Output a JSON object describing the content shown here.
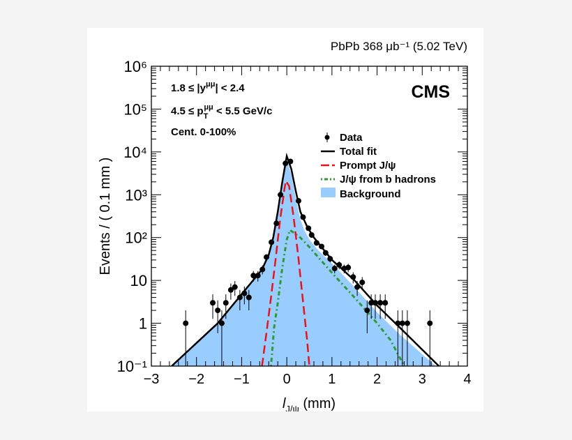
{
  "chart_data": {
    "type": "scatter",
    "header": "PbPb 368 μb⁻¹ (5.02 TeV)",
    "experiment": "CMS",
    "annotations": [
      "1.8 ≤ |y^μμ| < 2.4",
      "4.5 ≤ p_T^μμ < 5.5 GeV/c",
      "Cent. 0-100%"
    ],
    "xlabel": "l_J/ψ (mm)",
    "ylabel": "Events / ( 0.1 mm )",
    "xlim": [
      -3,
      4
    ],
    "ylim": [
      0.1,
      1000000
    ],
    "yscale": "log",
    "xticks": [
      "−3",
      "−2",
      "−1",
      "0",
      "1",
      "2",
      "3",
      "4"
    ],
    "yticks": [
      "10⁻¹",
      "1",
      "10",
      "10²",
      "10³",
      "10⁴",
      "10⁵",
      "10⁶"
    ],
    "legend_placement": "top-right",
    "legend": [
      "Data",
      "Total fit",
      "Prompt J/ψ",
      "J/ψ from b hadrons",
      "Background"
    ],
    "colors": {
      "data": "#000000",
      "total": "#000000",
      "prompt": "#e8141c",
      "nonprompt": "#2e9a37",
      "background": "#99ccff"
    },
    "data": {
      "x": [
        -2.24,
        -1.64,
        -1.53,
        -1.44,
        -1.35,
        -1.24,
        -1.15,
        -1.04,
        -0.94,
        -0.84,
        -0.74,
        -0.64,
        -0.54,
        -0.45,
        -0.34,
        -0.23,
        -0.14,
        -0.03,
        0.08,
        0.26,
        0.36,
        0.48,
        0.55,
        0.66,
        0.77,
        0.86,
        0.96,
        1.06,
        1.16,
        1.27,
        1.36,
        1.47,
        1.56,
        1.67,
        1.78,
        1.87,
        1.96,
        2.07,
        2.18,
        2.46,
        2.56,
        2.67,
        3.17
      ],
      "y": [
        1,
        3,
        2,
        1,
        3,
        6,
        7,
        4,
        5,
        4,
        13,
        13,
        18,
        35,
        78,
        215,
        1000,
        5400,
        6000,
        720,
        300,
        165,
        115,
        75,
        62,
        44,
        32,
        19,
        23,
        19,
        20,
        12,
        7,
        9,
        2,
        3,
        3,
        3,
        3,
        1,
        1,
        1,
        1
      ]
    },
    "total_fit": [
      [
        -2.55,
        0.1
      ],
      [
        -1.53,
        1
      ],
      [
        -0.55,
        18
      ],
      [
        -0.4,
        40
      ],
      [
        -0.3,
        100
      ],
      [
        -0.2,
        400
      ],
      [
        -0.1,
        2000
      ],
      [
        0,
        8000
      ],
      [
        0.1,
        4000
      ],
      [
        0.2,
        1200
      ],
      [
        0.3,
        400
      ],
      [
        0.45,
        180
      ],
      [
        0.6,
        100
      ],
      [
        1.0,
        30
      ],
      [
        1.5,
        10
      ],
      [
        2.0,
        2.6
      ],
      [
        2.5,
        0.8
      ],
      [
        3.37,
        0.1
      ]
    ],
    "background": [
      [
        -2.55,
        0.1
      ],
      [
        -1.53,
        1
      ],
      [
        -0.55,
        18
      ],
      [
        -0.4,
        40
      ],
      [
        -0.3,
        100
      ],
      [
        -0.2,
        380
      ],
      [
        -0.1,
        1800
      ],
      [
        0,
        6500
      ],
      [
        0.1,
        3000
      ],
      [
        0.2,
        800
      ],
      [
        0.3,
        260
      ],
      [
        0.4,
        140
      ],
      [
        0.5,
        90
      ],
      [
        0.7,
        50
      ],
      [
        1.0,
        25
      ],
      [
        1.5,
        7
      ],
      [
        2.0,
        1.8
      ],
      [
        2.5,
        0.55
      ],
      [
        3.3,
        0.1
      ]
    ],
    "prompt": [
      [
        -0.55,
        0.1
      ],
      [
        -0.45,
        0.6
      ],
      [
        -0.35,
        4
      ],
      [
        -0.25,
        30
      ],
      [
        -0.15,
        250
      ],
      [
        -0.05,
        1400
      ],
      [
        -0.02,
        2100
      ],
      [
        0.05,
        1600
      ],
      [
        0.15,
        300
      ],
      [
        0.25,
        40
      ],
      [
        0.35,
        4
      ],
      [
        0.45,
        0.4
      ],
      [
        0.5,
        0.1
      ]
    ],
    "nonprompt": [
      [
        -0.35,
        0.1
      ],
      [
        -0.28,
        0.8
      ],
      [
        -0.2,
        3
      ],
      [
        -0.1,
        20
      ],
      [
        0,
        90
      ],
      [
        0.07,
        150
      ],
      [
        0.3,
        100
      ],
      [
        0.5,
        60
      ],
      [
        1.0,
        15
      ],
      [
        1.5,
        4
      ],
      [
        2.0,
        1
      ],
      [
        2.3,
        0.4
      ],
      [
        2.6,
        0.1
      ]
    ]
  }
}
